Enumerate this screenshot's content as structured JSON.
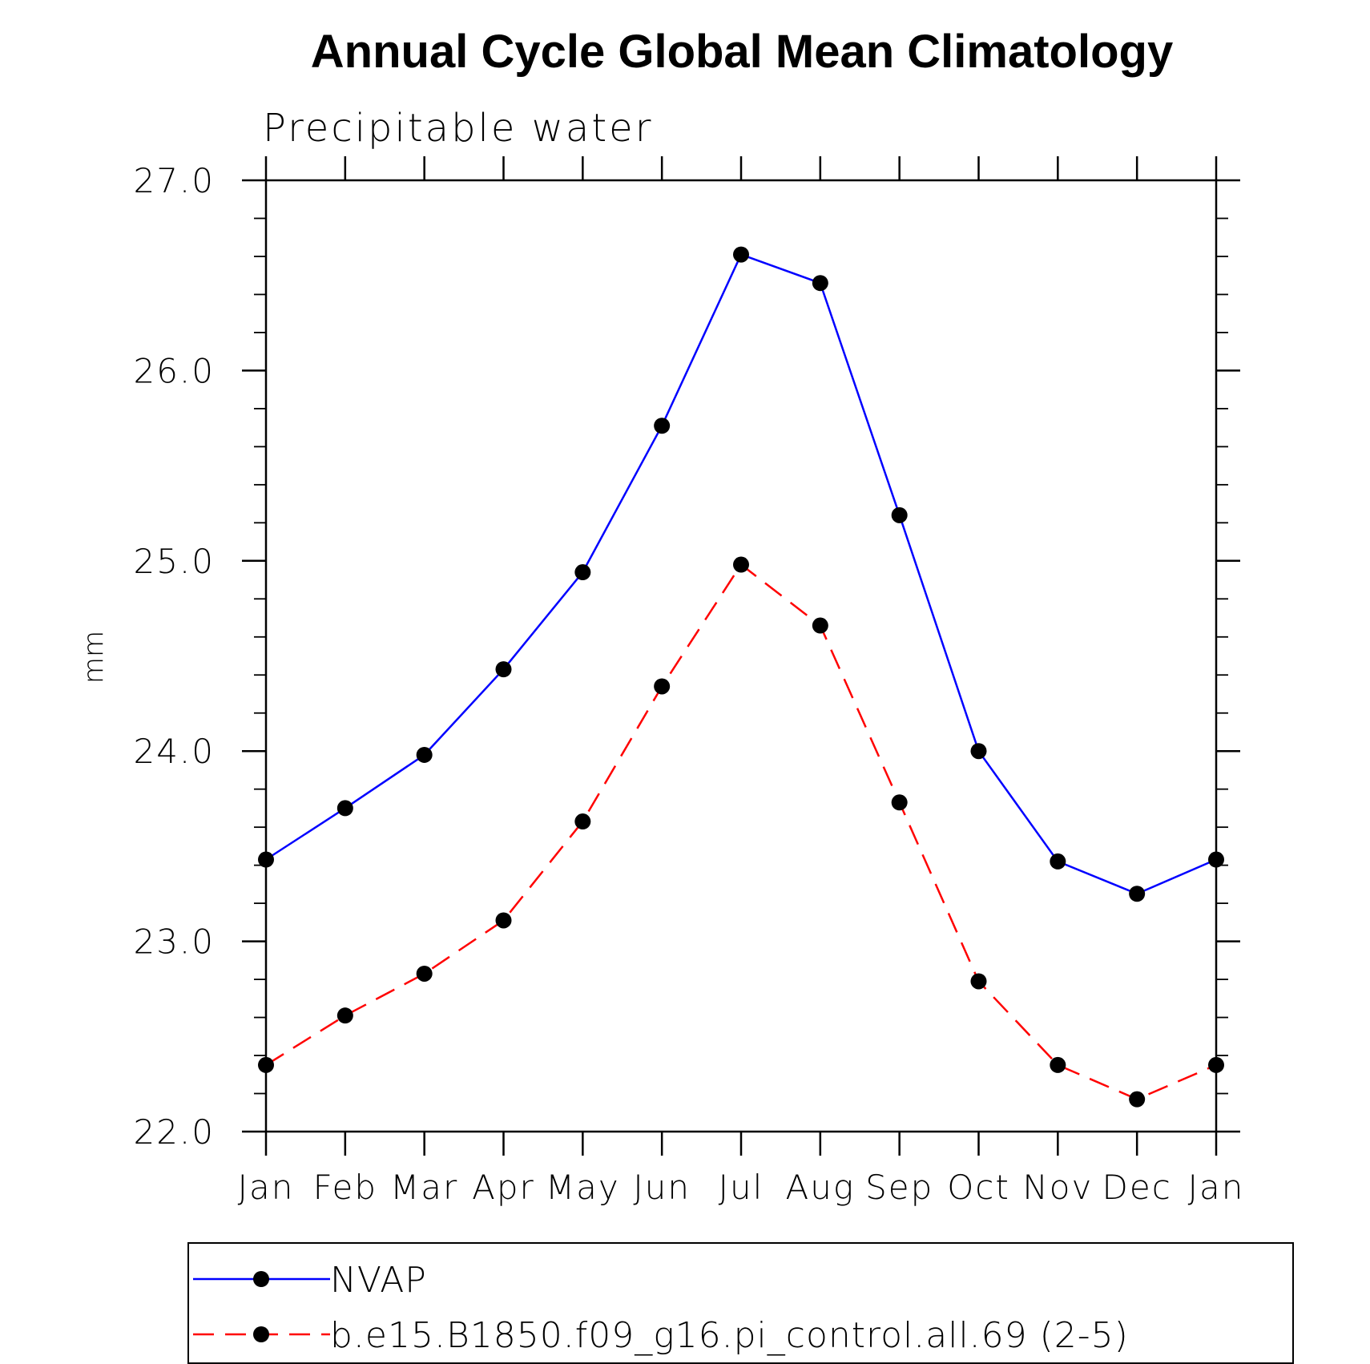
{
  "chart_data": {
    "type": "line",
    "title": "Annual Cycle Global Mean Climatology",
    "subtitle": "Precipitable water",
    "xlabel": "",
    "ylabel": "mm",
    "categories": [
      "Jan",
      "Feb",
      "Mar",
      "Apr",
      "May",
      "Jun",
      "Jul",
      "Aug",
      "Sep",
      "Oct",
      "Nov",
      "Dec",
      "Jan"
    ],
    "ylim": [
      22.0,
      27.0
    ],
    "yticks": [
      "22.0",
      "23.0",
      "24.0",
      "25.0",
      "26.0",
      "27.0"
    ],
    "series": [
      {
        "name": "NVAP",
        "color": "#0000ff",
        "dashed": false,
        "values": [
          23.43,
          23.7,
          23.98,
          24.43,
          24.94,
          25.71,
          26.61,
          26.46,
          25.24,
          24.0,
          23.42,
          23.25,
          23.43
        ]
      },
      {
        "name": "b.e15.B1850.f09_g16.pi_control.all.69 (2-5)",
        "color": "#ff0000",
        "dashed": true,
        "values": [
          22.35,
          22.61,
          22.83,
          23.11,
          23.63,
          24.34,
          24.98,
          24.66,
          23.73,
          22.79,
          22.35,
          22.17,
          22.35
        ]
      }
    ],
    "grid": false,
    "legend_position": "bottom"
  }
}
